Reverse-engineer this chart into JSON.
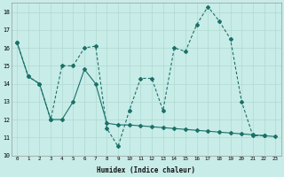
{
  "xlabel": "Humidex (Indice chaleur)",
  "background_color": "#c8ece8",
  "grid_color": "#b0d8d0",
  "line_color": "#1a7068",
  "xlim": [
    -0.5,
    23.5
  ],
  "ylim": [
    10,
    18.5
  ],
  "yticks": [
    10,
    11,
    12,
    13,
    14,
    15,
    16,
    17,
    18
  ],
  "xticks": [
    0,
    1,
    2,
    3,
    4,
    5,
    6,
    7,
    8,
    9,
    10,
    11,
    12,
    13,
    14,
    15,
    16,
    17,
    18,
    19,
    20,
    21,
    22,
    23
  ],
  "series1_x": [
    0,
    1,
    2,
    3,
    4,
    5,
    6,
    7,
    8,
    9,
    10,
    11,
    12,
    13,
    14,
    15,
    16,
    17,
    18,
    19,
    20,
    21,
    22
  ],
  "series1_y": [
    16.3,
    14.4,
    14.0,
    12.0,
    15.0,
    15.0,
    16.0,
    16.1,
    11.5,
    10.5,
    12.5,
    14.3,
    14.3,
    12.5,
    16.0,
    15.8,
    17.3,
    18.3,
    17.5,
    16.5,
    13.0,
    11.1,
    11.1
  ],
  "series2_x": [
    0,
    1,
    2,
    3,
    4,
    5,
    6,
    7,
    8,
    9,
    10,
    11,
    12,
    13,
    14,
    15,
    16,
    17,
    18,
    19,
    20,
    21,
    22,
    23
  ],
  "series2_y": [
    16.3,
    14.4,
    14.0,
    12.0,
    12.0,
    13.0,
    14.8,
    14.0,
    11.8,
    11.7,
    11.7,
    11.65,
    11.6,
    11.55,
    11.5,
    11.45,
    11.4,
    11.35,
    11.3,
    11.25,
    11.2,
    11.15,
    11.1,
    11.05
  ]
}
